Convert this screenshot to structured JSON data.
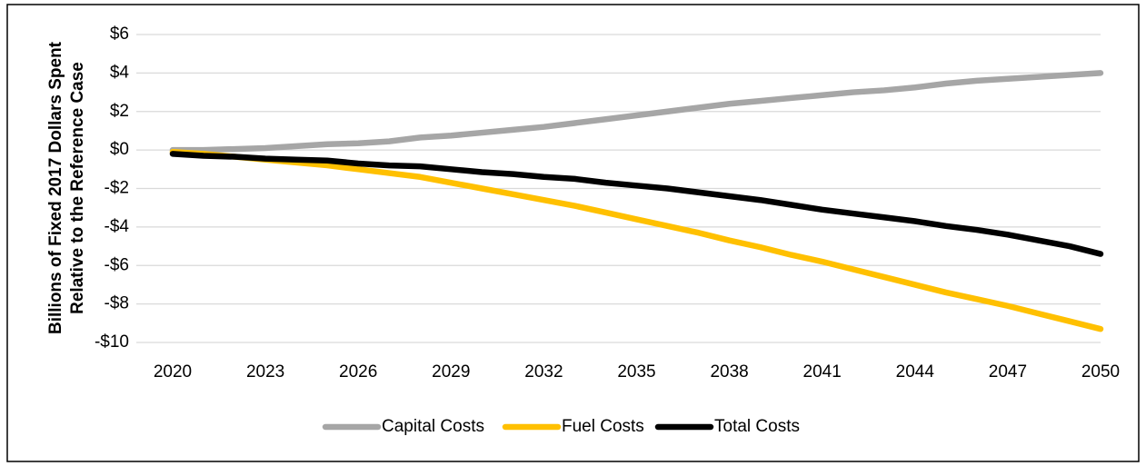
{
  "chart_data": {
    "type": "line",
    "ylabel": [
      "Billions of Fixed 2017 Dollars Spent",
      "Relative to the Reference Case"
    ],
    "x": [
      2020,
      2021,
      2022,
      2023,
      2024,
      2025,
      2026,
      2027,
      2028,
      2029,
      2030,
      2031,
      2032,
      2033,
      2034,
      2035,
      2036,
      2037,
      2038,
      2039,
      2040,
      2041,
      2042,
      2043,
      2044,
      2045,
      2046,
      2047,
      2048,
      2049,
      2050
    ],
    "series": [
      {
        "name": "Capital Costs",
        "color": "#a6a6a6",
        "values": [
          0,
          0,
          0.05,
          0.1,
          0.2,
          0.3,
          0.35,
          0.45,
          0.65,
          0.75,
          0.9,
          1.05,
          1.2,
          1.4,
          1.6,
          1.8,
          2.0,
          2.2,
          2.4,
          2.55,
          2.7,
          2.85,
          3.0,
          3.1,
          3.25,
          3.45,
          3.6,
          3.7,
          3.8,
          3.9,
          4.0
        ]
      },
      {
        "name": "Fuel Costs",
        "color": "#ffc000",
        "values": [
          -0.1,
          -0.2,
          -0.35,
          -0.5,
          -0.65,
          -0.8,
          -1.0,
          -1.2,
          -1.4,
          -1.7,
          -2.0,
          -2.3,
          -2.6,
          -2.9,
          -3.25,
          -3.6,
          -3.95,
          -4.3,
          -4.7,
          -5.05,
          -5.45,
          -5.8,
          -6.2,
          -6.6,
          -7.0,
          -7.4,
          -7.75,
          -8.1,
          -8.5,
          -8.9,
          -9.3
        ]
      },
      {
        "name": "Total Costs",
        "color": "#000000",
        "values": [
          -0.2,
          -0.3,
          -0.35,
          -0.45,
          -0.5,
          -0.55,
          -0.7,
          -0.8,
          -0.85,
          -1.0,
          -1.15,
          -1.25,
          -1.4,
          -1.5,
          -1.7,
          -1.85,
          -2.0,
          -2.2,
          -2.4,
          -2.6,
          -2.85,
          -3.1,
          -3.3,
          -3.5,
          -3.7,
          -3.95,
          -4.15,
          -4.4,
          -4.7,
          -5.0,
          -5.4
        ]
      }
    ],
    "xlim": [
      2020,
      2050
    ],
    "xticks": [
      2020,
      2023,
      2026,
      2029,
      2032,
      2035,
      2038,
      2041,
      2044,
      2047,
      2050
    ],
    "ylim": [
      -10,
      6
    ],
    "yticks": [
      {
        "value": 6,
        "label": "$6"
      },
      {
        "value": 4,
        "label": "$4"
      },
      {
        "value": 2,
        "label": "$2"
      },
      {
        "value": 0,
        "label": "$0"
      },
      {
        "value": -2,
        "label": "-$2"
      },
      {
        "value": -4,
        "label": "-$4"
      },
      {
        "value": -6,
        "label": "-$6"
      },
      {
        "value": -8,
        "label": "-$8"
      },
      {
        "value": -10,
        "label": "-$10"
      }
    ],
    "grid": true,
    "legend": "bottom"
  }
}
